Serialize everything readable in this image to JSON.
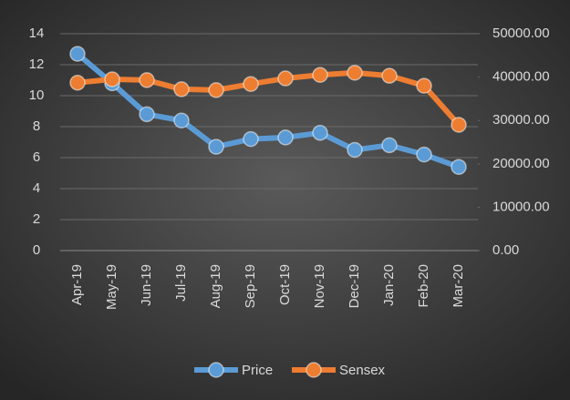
{
  "chart_data": {
    "type": "line",
    "categories": [
      "Apr-19",
      "May-19",
      "Jun-19",
      "Jul-19",
      "Aug-19",
      "Sep-19",
      "Oct-19",
      "Nov-19",
      "Dec-19",
      "Jan-20",
      "Feb-20",
      "Mar-20"
    ],
    "series": [
      {
        "name": "Price",
        "color": "#5b9bd5",
        "values": [
          12.7,
          10.8,
          8.8,
          8.4,
          6.7,
          7.2,
          7.3,
          7.6,
          6.5,
          6.8,
          6.2,
          5.4
        ]
      },
      {
        "name": "Sensex",
        "color": "#ed7d31",
        "axis": "y2",
        "values": [
          38700,
          39500,
          39300,
          37200,
          37000,
          38400,
          39700,
          40500,
          41000,
          40300,
          38000,
          29000
        ]
      }
    ],
    "ylim": [
      0,
      14
    ],
    "yticks": [
      0,
      2,
      4,
      6,
      8,
      10,
      12,
      14
    ],
    "y2lim": [
      0,
      50000
    ],
    "y2ticks": [
      {
        "value": 0,
        "label": "0.00"
      },
      {
        "value": 10000,
        "label": "10000.00"
      },
      {
        "value": 20000,
        "label": "20000.00"
      },
      {
        "value": 30000,
        "label": "30000.00"
      },
      {
        "value": 40000,
        "label": "40000.00"
      },
      {
        "value": 50000,
        "label": "50000.00"
      }
    ],
    "grid": true,
    "legend": "bottom"
  }
}
